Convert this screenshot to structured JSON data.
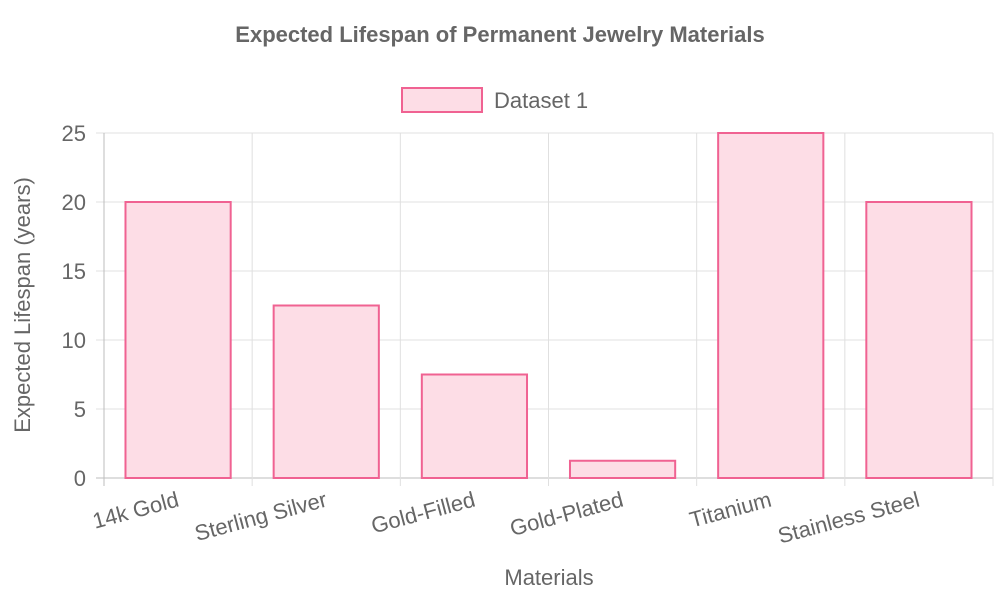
{
  "chart_data": {
    "type": "bar",
    "title": "Expected Lifespan of Permanent Jewelry Materials",
    "xlabel": "Materials",
    "ylabel": "Expected Lifespan (years)",
    "categories": [
      "14k Gold",
      "Sterling Silver",
      "Gold-Filled",
      "Gold-Plated",
      "Titanium",
      "Stainless Steel"
    ],
    "series": [
      {
        "name": "Dataset 1",
        "values": [
          20,
          12.5,
          7.5,
          1.25,
          25,
          20
        ]
      }
    ],
    "ylim": [
      0,
      25
    ],
    "yticks": [
      0,
      5,
      10,
      15,
      20,
      25
    ],
    "grid": true,
    "legend_position": "top",
    "colors": {
      "bar_fill": "#fddde6",
      "bar_stroke": "#f06292",
      "grid": "#e0e0e0",
      "text": "#666666"
    }
  }
}
